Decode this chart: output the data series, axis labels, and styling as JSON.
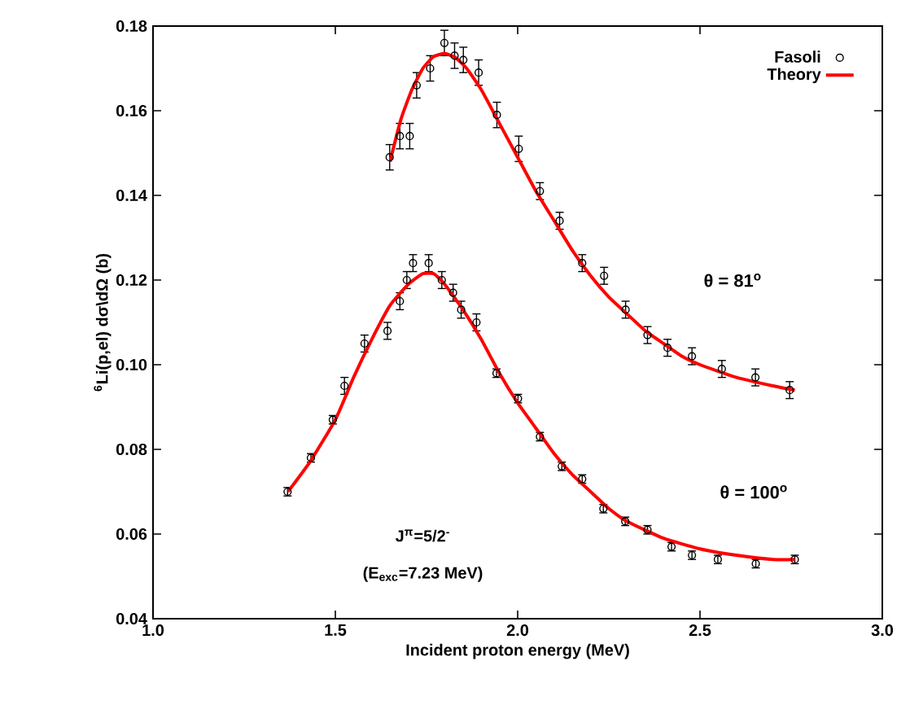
{
  "chart_data": {
    "type": "scatter",
    "xlabel": "Incident proton energy (MeV)",
    "ylabel": "$^{6}$Li(p,el) dσ\\dΩ (b)",
    "xlim": [
      1.0,
      3.0
    ],
    "ylim": [
      0.04,
      0.18
    ],
    "xticks": [
      {
        "value": 1.0,
        "label": "1.0"
      },
      {
        "value": 1.5,
        "label": "1.5"
      },
      {
        "value": 2.0,
        "label": "2.0"
      },
      {
        "value": 2.5,
        "label": "2.5"
      },
      {
        "value": 3.0,
        "label": "3.0"
      }
    ],
    "yticks": [
      {
        "value": 0.04,
        "label": "0.04"
      },
      {
        "value": 0.06,
        "label": "0.06"
      },
      {
        "value": 0.08,
        "label": "0.08"
      },
      {
        "value": 0.1,
        "label": "0.10"
      },
      {
        "value": 0.12,
        "label": "0.12"
      },
      {
        "value": 0.14,
        "label": "0.14"
      },
      {
        "value": 0.16,
        "label": "0.16"
      },
      {
        "value": 0.18,
        "label": "0.18"
      }
    ],
    "legend": "top right",
    "grid": false,
    "series": [
      {
        "name": "Fasoli",
        "marker": "circle",
        "color": "#000000",
        "x": [
          1.649,
          1.677,
          1.704,
          1.723,
          1.76,
          1.799,
          1.827,
          1.851,
          1.893,
          1.943,
          2.003,
          2.061,
          2.115,
          2.177,
          2.237,
          2.296,
          2.356,
          2.411,
          2.478,
          2.56,
          2.652,
          2.746
        ],
        "values": [
          0.149,
          0.154,
          0.154,
          0.166,
          0.17,
          0.176,
          0.173,
          0.172,
          0.169,
          0.159,
          0.151,
          0.141,
          0.134,
          0.124,
          0.121,
          0.113,
          0.107,
          0.104,
          0.102,
          0.099,
          0.097,
          0.094
        ],
        "errors": [
          0.003,
          0.003,
          0.003,
          0.003,
          0.003,
          0.003,
          0.003,
          0.003,
          0.003,
          0.003,
          0.003,
          0.002,
          0.002,
          0.002,
          0.002,
          0.002,
          0.002,
          0.002,
          0.002,
          0.002,
          0.002,
          0.002
        ]
      },
      {
        "marker": "circle",
        "color": "#000000",
        "x": [
          1.369,
          1.433,
          1.493,
          1.525,
          1.58,
          1.643,
          1.677,
          1.696,
          1.713,
          1.756,
          1.792,
          1.823,
          1.845,
          1.887,
          1.942,
          2.001,
          2.061,
          2.121,
          2.177,
          2.235,
          2.295,
          2.356,
          2.422,
          2.478,
          2.549,
          2.653,
          2.76
        ],
        "values": [
          0.07,
          0.078,
          0.087,
          0.095,
          0.105,
          0.108,
          0.115,
          0.12,
          0.124,
          0.124,
          0.12,
          0.117,
          0.113,
          0.11,
          0.098,
          0.092,
          0.083,
          0.076,
          0.073,
          0.066,
          0.063,
          0.061,
          0.057,
          0.055,
          0.054,
          0.053,
          0.054
        ],
        "errors": [
          0.001,
          0.001,
          0.001,
          0.002,
          0.002,
          0.002,
          0.002,
          0.002,
          0.002,
          0.002,
          0.002,
          0.002,
          0.002,
          0.002,
          0.001,
          0.001,
          0.001,
          0.001,
          0.001,
          0.001,
          0.001,
          0.001,
          0.001,
          0.001,
          0.001,
          0.001,
          0.001
        ]
      },
      {
        "name": "Theory",
        "type": "line",
        "color": "#ff0000",
        "x": [
          1.65,
          1.68,
          1.71,
          1.74,
          1.77,
          1.8,
          1.83,
          1.86,
          1.9,
          1.95,
          2.0,
          2.05,
          2.1,
          2.15,
          2.2,
          2.25,
          2.3,
          2.35,
          2.4,
          2.45,
          2.5,
          2.6,
          2.7,
          2.76
        ],
        "values": [
          0.148,
          0.158,
          0.165,
          0.17,
          0.1728,
          0.1735,
          0.1725,
          0.17,
          0.165,
          0.157,
          0.149,
          0.141,
          0.134,
          0.127,
          0.121,
          0.116,
          0.112,
          0.108,
          0.105,
          0.102,
          0.1,
          0.097,
          0.095,
          0.094
        ]
      },
      {
        "type": "line",
        "color": "#ff0000",
        "x": [
          1.37,
          1.43,
          1.5,
          1.55,
          1.6,
          1.65,
          1.7,
          1.74,
          1.77,
          1.8,
          1.85,
          1.9,
          1.95,
          2.0,
          2.05,
          2.1,
          2.15,
          2.2,
          2.25,
          2.3,
          2.4,
          2.5,
          2.6,
          2.7,
          2.76
        ],
        "values": [
          0.07,
          0.077,
          0.087,
          0.097,
          0.106,
          0.114,
          0.119,
          0.1215,
          0.1215,
          0.119,
          0.113,
          0.106,
          0.098,
          0.091,
          0.085,
          0.079,
          0.074,
          0.07,
          0.066,
          0.063,
          0.059,
          0.0565,
          0.055,
          0.054,
          0.054
        ]
      }
    ],
    "annotations": [
      "θ = 81$^{o}$",
      "θ = 100$^{o}$",
      "J$^{π}$=5/2$^{-}$",
      "(E$_{exc}$=7.23 MeV)"
    ]
  }
}
